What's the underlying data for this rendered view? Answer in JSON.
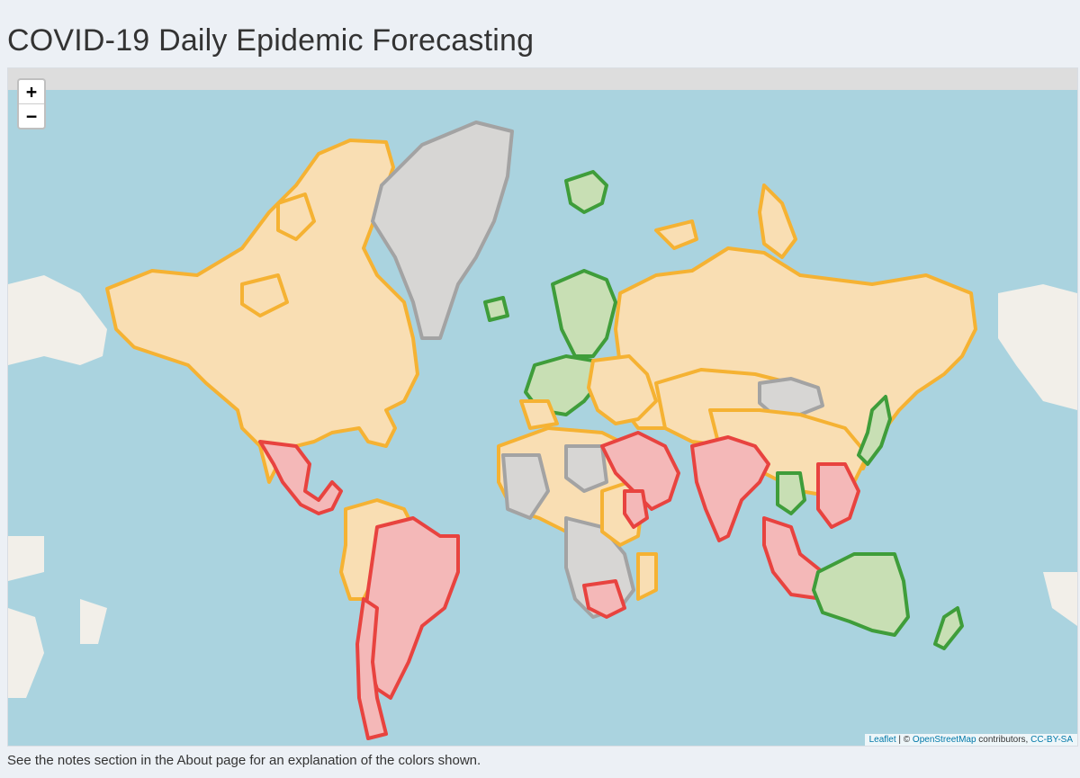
{
  "page": {
    "title": "COVID-19 Daily Epidemic Forecasting",
    "notes": "See the notes section in the About page for an explanation of the colors shown."
  },
  "map": {
    "zoom_in_label": "+",
    "zoom_out_label": "−",
    "attribution": {
      "leaflet": "Leaflet",
      "separator": " | © ",
      "osm": "OpenStreetMap",
      "contributors": " contributors, ",
      "license": "CC-BY-SA"
    },
    "colors": {
      "ocean": "#aad3df",
      "land_base": "#f2efe9",
      "orange_fill": "#f9deb3",
      "orange_stroke": "#f5b233",
      "red_fill": "#f4b8b8",
      "red_stroke": "#e8433f",
      "green_fill": "#c8dfb4",
      "green_stroke": "#3f9d3a",
      "grey_fill": "#d7d6d4",
      "grey_stroke": "#a3a3a3"
    },
    "icons": [
      "zoom-in-icon",
      "zoom-out-icon"
    ]
  }
}
